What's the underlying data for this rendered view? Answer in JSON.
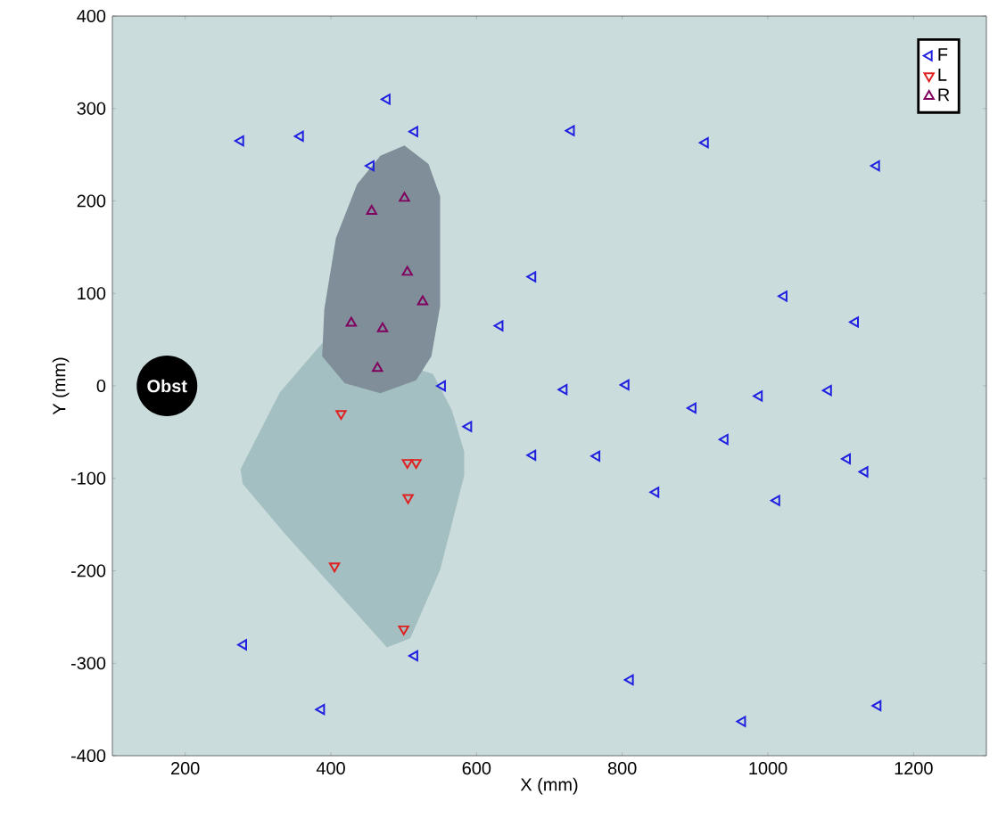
{
  "chart_data": {
    "type": "scatter",
    "xlabel": "X (mm)",
    "ylabel": "Y (mm)",
    "xlim": [
      100,
      1300
    ],
    "ylim": [
      -400,
      400
    ],
    "xticks": [
      200,
      400,
      600,
      800,
      1000,
      1200
    ],
    "yticks": [
      -400,
      -300,
      -200,
      -100,
      0,
      100,
      200,
      300,
      400
    ],
    "marker": "triangle",
    "legend": "top right",
    "annotations": [
      {
        "text": "Obst",
        "x": 175,
        "y": 0
      }
    ],
    "series": [
      {
        "name": "F",
        "color": "#2020e0",
        "x": [
          477,
          276,
          358,
          515,
          455,
          677,
          632,
          553,
          589,
          677,
          280,
          515,
          387,
          730,
          914,
          1149,
          1022,
          1120,
          720,
          805,
          897,
          988,
          1083,
          941,
          765,
          1109,
          1133,
          846,
          1012,
          811,
          1151,
          965
        ],
        "values": [
          310,
          265,
          270,
          275,
          238,
          118,
          65,
          0,
          -44,
          -75,
          -280,
          -292,
          -350,
          276,
          263,
          238,
          97,
          69,
          -4,
          1,
          -24,
          -11,
          -5,
          -58,
          -76,
          -79,
          -93,
          -115,
          -124,
          -318,
          -346,
          -363
        ]
      },
      {
        "name": "L",
        "color": "#e02020",
        "x": [
          414,
          505,
          517,
          506,
          405,
          500
        ],
        "values": [
          -30,
          -83,
          -83,
          -121,
          -195,
          -263
        ]
      },
      {
        "name": "R",
        "color": "#800060",
        "x": [
          501,
          456,
          505,
          526,
          428,
          471,
          464
        ],
        "values": [
          203,
          189,
          123,
          91,
          68,
          62,
          19
        ]
      }
    ]
  }
}
